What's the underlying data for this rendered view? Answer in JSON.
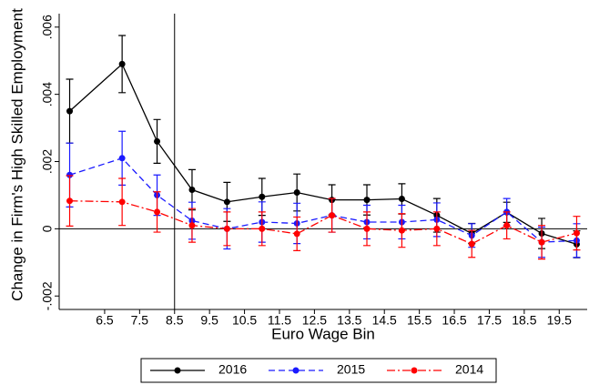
{
  "chart_data": {
    "type": "line_errorbar",
    "y_label": "Change in Firm's High Skilled Employment",
    "x_label": "Euro Wage Bin",
    "x": [
      5.5,
      7,
      8,
      9,
      10,
      11,
      12,
      13,
      14,
      15,
      16,
      17,
      18,
      19,
      20
    ],
    "series": [
      {
        "name": "2016",
        "color": "#000000",
        "dash": "solid",
        "values": [
          0.0035,
          0.0049,
          0.0026,
          0.00116,
          0.0008,
          0.00095,
          0.00108,
          0.00086,
          0.00086,
          0.00089,
          0.0004,
          -0.00014,
          0.00049,
          -0.00014,
          -0.00046
        ],
        "errors": [
          0.00095,
          0.00085,
          0.00065,
          0.0006,
          0.00058,
          0.00055,
          0.00055,
          0.00045,
          0.00045,
          0.00045,
          0.0005,
          0.0003,
          0.0003,
          0.00045,
          0.0004
        ]
      },
      {
        "name": "2015",
        "color": "#1a1aff",
        "dash": "dashed",
        "values": [
          0.0016,
          0.0021,
          0.001,
          0.00024,
          0,
          0.0002,
          0.00016,
          0.0004,
          0.0002,
          0.0002,
          0.00027,
          -0.0002,
          0.0005,
          -0.0004,
          -0.00035
        ],
        "errors": [
          0.00095,
          0.0008,
          0.0006,
          0.00055,
          0.0006,
          0.0006,
          0.0006,
          0.0005,
          0.0005,
          0.0005,
          0.0005,
          0.00035,
          0.0004,
          0.00045,
          0.0005
        ]
      },
      {
        "name": "2014",
        "color": "#ff0000",
        "dash": "dashdot",
        "values": [
          0.00083,
          0.0008,
          0.0005,
          0.0001,
          0,
          0,
          -0.00015,
          0.0004,
          0,
          -5e-05,
          0,
          -0.00045,
          0.0001,
          -0.0004,
          -0.00013
        ],
        "errors": [
          0.00075,
          0.0007,
          0.0006,
          0.0005,
          0.0005,
          0.0005,
          0.0005,
          0.0005,
          0.0005,
          0.0005,
          0.0005,
          0.0004,
          0.0004,
          0.0005,
          0.0005
        ]
      }
    ],
    "xlim": [
      5.2,
      20.3
    ],
    "ylim": [
      -0.0024,
      0.0064
    ],
    "xticks": [
      6.5,
      7.5,
      8.5,
      9.5,
      10.5,
      11.5,
      12.5,
      13.5,
      14.5,
      15.5,
      16.5,
      17.5,
      18.5,
      19.5
    ],
    "yticks": [
      {
        "value": -0.002,
        "label": "-.002"
      },
      0,
      {
        "value": 0.002,
        "label": ".002"
      },
      {
        "value": 0.004,
        "label": ".004"
      },
      {
        "value": 0.006,
        "label": ".006"
      }
    ],
    "vline": 8.5,
    "hline": 0,
    "legend": "bottom"
  }
}
